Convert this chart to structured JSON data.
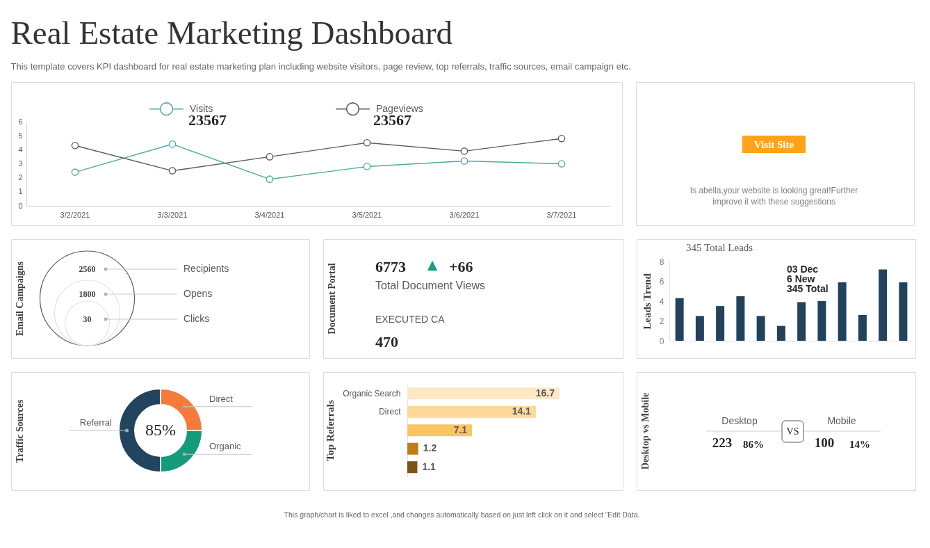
{
  "chart_data": [
    {
      "type": "other",
      "title": "Real Estate Marketing Dashboard",
      "subtitle": "This template covers KPI dashboard for real estate marketing plan including website visitors, page review, top referrals, traffic sources, email campaign etc.",
      "annotations": [
        "This graph/chart is liked to excel ,and changes automatically based on just left click on it and select “Edit Data."
      ]
    },
    {
      "type": "line",
      "categories": [
        "3/2/2021",
        "3/3/2021",
        "3/4/2021",
        "3/5/2021",
        "3/6/2021",
        "3/7/2021"
      ],
      "series": [
        {
          "name": "Visits",
          "color": "#4fa9a0",
          "values": [
            2.4,
            4.4,
            1.9,
            2.8,
            3.2,
            3.0
          ]
        },
        {
          "name": "Pageviews",
          "color": "#5a5a5a",
          "values": [
            4.3,
            2.5,
            3.5,
            4.5,
            3.9,
            4.8
          ]
        }
      ],
      "ylim": [
        0,
        6
      ],
      "yticks": [
        0,
        1,
        2,
        3,
        4,
        5,
        6
      ],
      "grid": false,
      "legend": "top",
      "marker": "circle",
      "line_style": "solid",
      "annotations": [
        "23567",
        "23567"
      ]
    },
    {
      "type": "other",
      "annotations": [
        "Visit Site",
        "Is abella,your website is looking great!Further improve it with these suggestions"
      ]
    },
    {
      "type": "other",
      "title": "Email Campaigns",
      "categories": [
        "Recipients",
        "Opens",
        "Clicks"
      ],
      "values": [
        2560,
        1800,
        30
      ],
      "data_labels": true
    },
    {
      "type": "other",
      "title": "Document Portal",
      "categories": [
        "Total Document Views",
        "EXECUTED CA"
      ],
      "values": [
        6773,
        470
      ],
      "data_labels": true,
      "annotations": [
        "▲",
        "+66"
      ]
    },
    {
      "type": "bar",
      "title": "345 Total Leads",
      "ylabel": "Leads Trend",
      "categories": [
        null,
        null,
        null,
        null,
        null,
        null,
        null,
        null,
        null,
        null,
        null,
        null
      ],
      "values": [
        4.3,
        2.5,
        3.5,
        4.5,
        2.5,
        1.5,
        3.9,
        4.0,
        5.9,
        2.6,
        7.2,
        5.9
      ],
      "color": "#22425c",
      "ylim": [
        0,
        8
      ],
      "yticks": [
        0,
        2,
        4,
        6,
        8
      ],
      "grid": false,
      "annotations": [
        "03 Dec",
        "6 New",
        "345 Total"
      ]
    },
    {
      "type": "donut",
      "title": "Traffic Sources",
      "categories": [
        "Direct",
        "Organic",
        "Referral"
      ],
      "values": [
        25,
        25,
        50
      ],
      "colors": [
        "#f57b3b",
        "#149b7c",
        "#22445c"
      ],
      "annotations": [
        "85%"
      ]
    },
    {
      "type": "bar",
      "orientation": "horizontal",
      "ylabel": "Top Referrals",
      "categories": [
        "Organic Search",
        "Direct",
        null,
        null,
        null
      ],
      "values": [
        16.7,
        14.1,
        7.1,
        1.2,
        1.1
      ],
      "colors": [
        "#fde8c6",
        "#fdd89a",
        "#fbc566",
        "#c07d14",
        "#7b5218"
      ],
      "data_labels": true
    },
    {
      "type": "other",
      "title": "Desktop vs Mobile",
      "categories": [
        "Desktop",
        "Mobile"
      ],
      "values": [
        223,
        100
      ],
      "data_labels": true,
      "annotations": [
        "86%",
        "14%",
        "VS"
      ]
    }
  ]
}
